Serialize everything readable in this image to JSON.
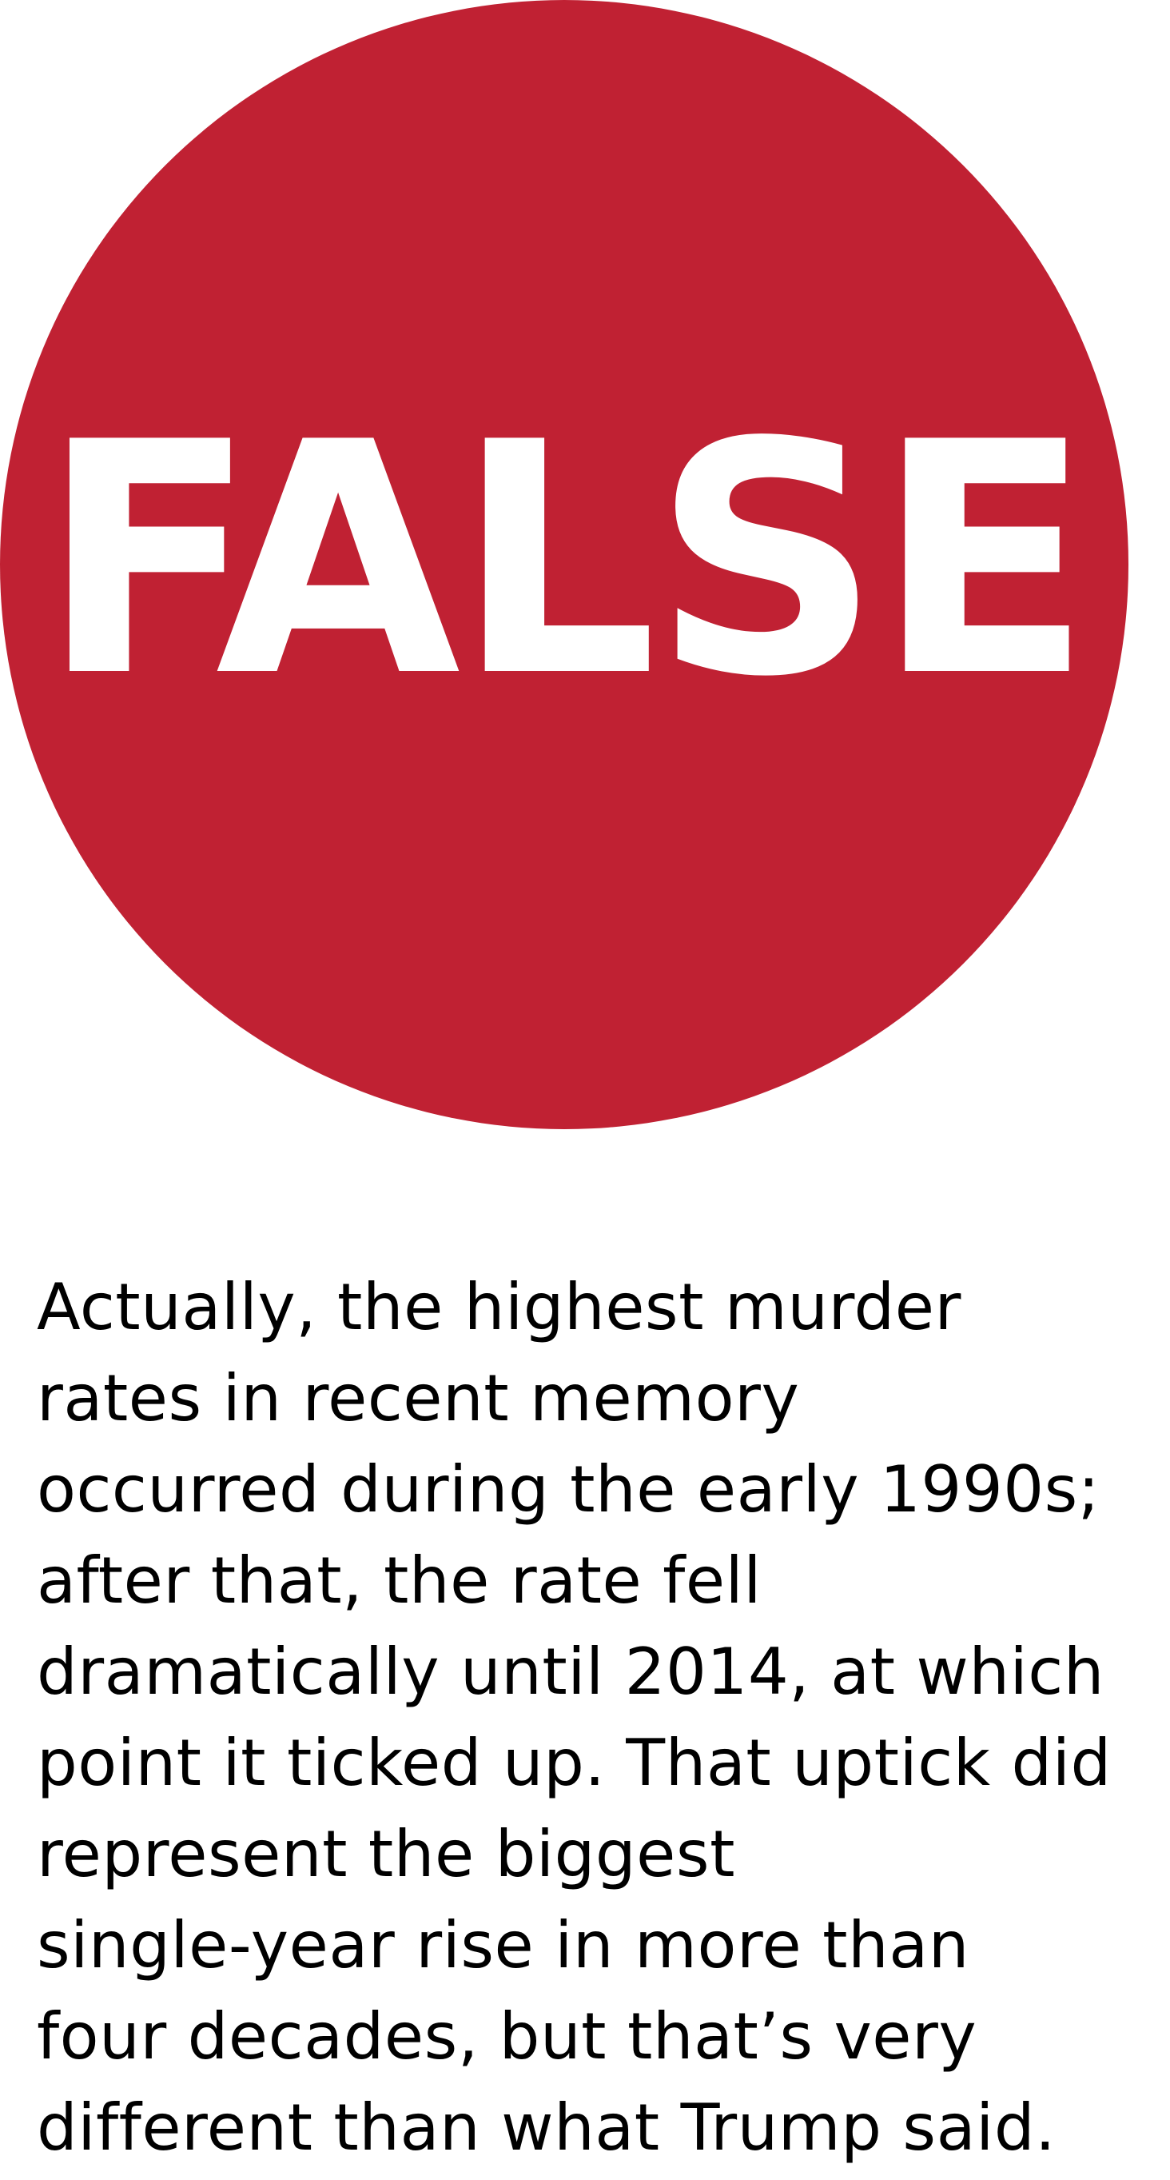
{
  "verdict": {
    "label": "FALSE",
    "circle_color": "#c02133",
    "text_color": "#ffffff"
  },
  "explanation": {
    "lines": [
      "Actually, the highest murder",
      "rates in recent memory",
      "occurred during the early 1990s;",
      "after that, the rate fell",
      "dramatically until 2014, at which",
      "point it ticked up. That uptick did",
      "represent the biggest",
      "single-year rise in more than",
      "four decades, but that’s very",
      "different than what Trump said."
    ]
  }
}
